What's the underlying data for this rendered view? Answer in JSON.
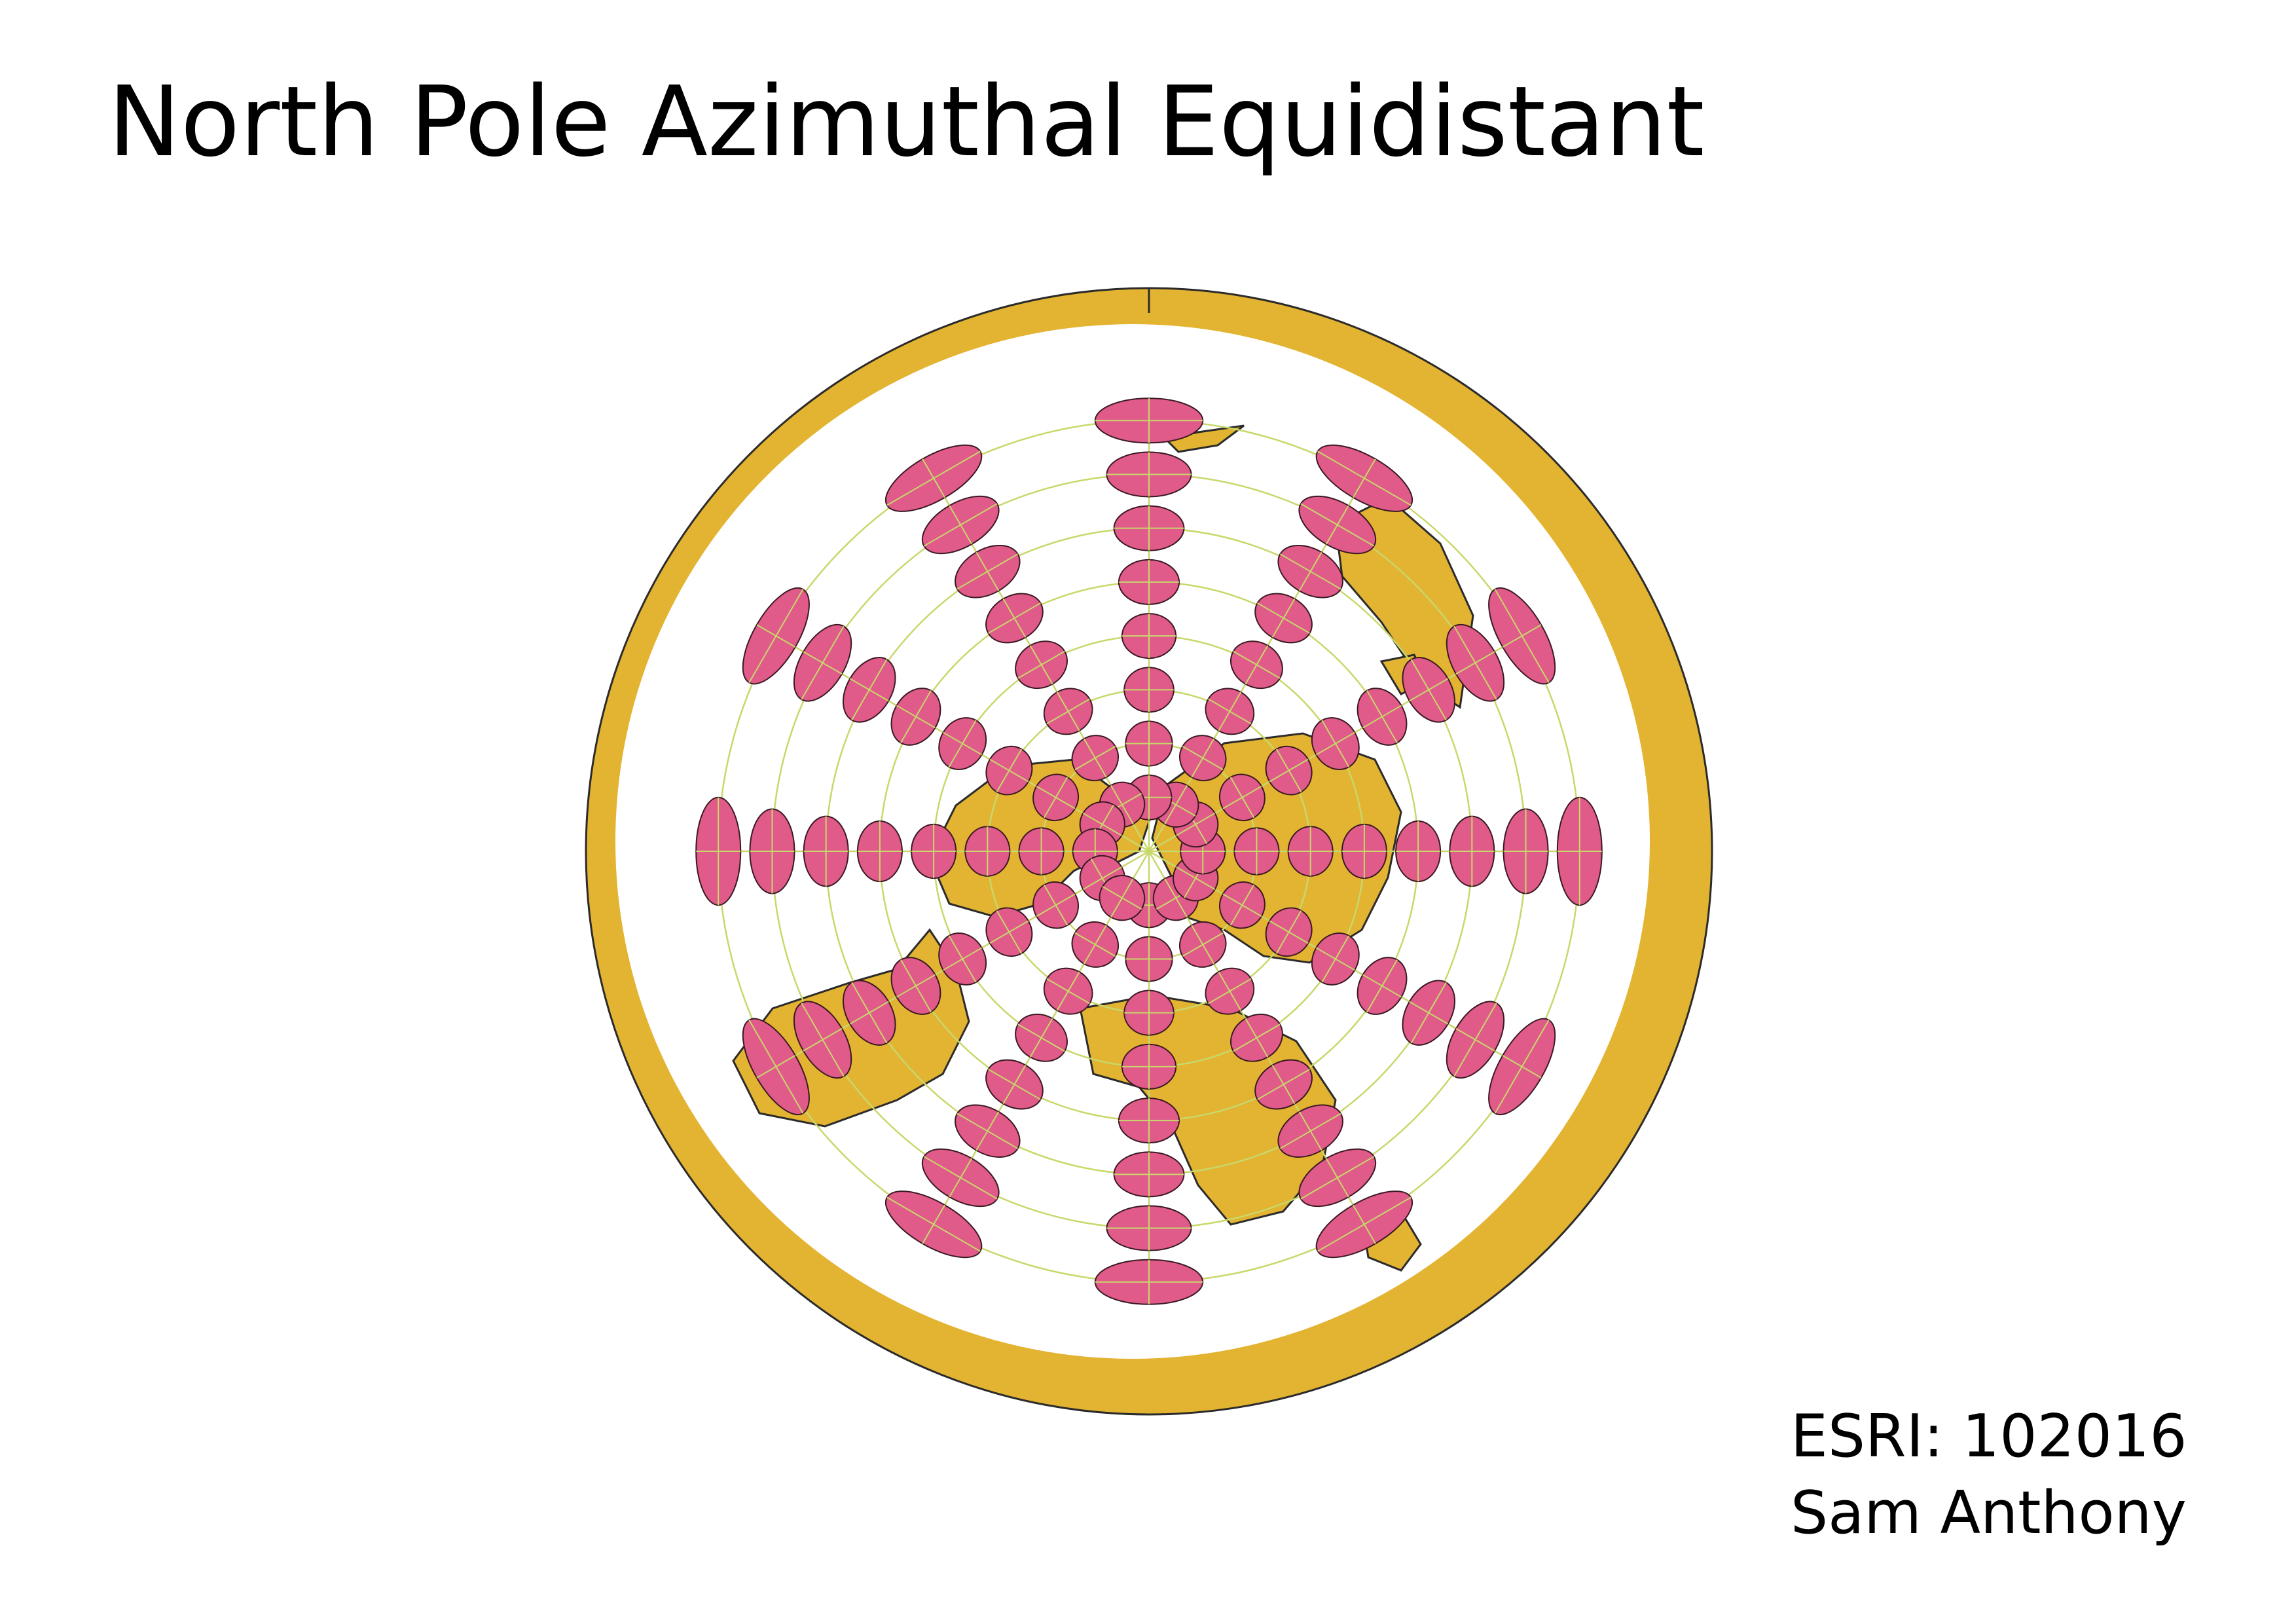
{
  "title": "North Pole Azimuthal Equidistant",
  "credits": {
    "code": "ESRI: 102016",
    "author": "Sam Anthony"
  },
  "map": {
    "projection": "North Pole Azimuthal Equidistant",
    "center": "north-pole",
    "colors": {
      "land": "#e3b332",
      "land_outline": "#2b2b2b",
      "ocean": "#ffffff",
      "graticule": "#c8d86a",
      "tissot": "#e05a8a",
      "tissot_outline": "#3a1a22"
    },
    "graticule": {
      "meridian_step_deg": 30,
      "parallel_step_deg": 15,
      "parallel_latitudes": [
        75,
        60,
        45,
        30,
        15,
        0,
        -15,
        -30
      ]
    },
    "tissot_indicatrix": {
      "present": true,
      "latitudes": [
        75,
        60,
        45,
        30,
        15,
        0,
        -15,
        -30
      ],
      "longitude_step_deg": 30
    }
  }
}
